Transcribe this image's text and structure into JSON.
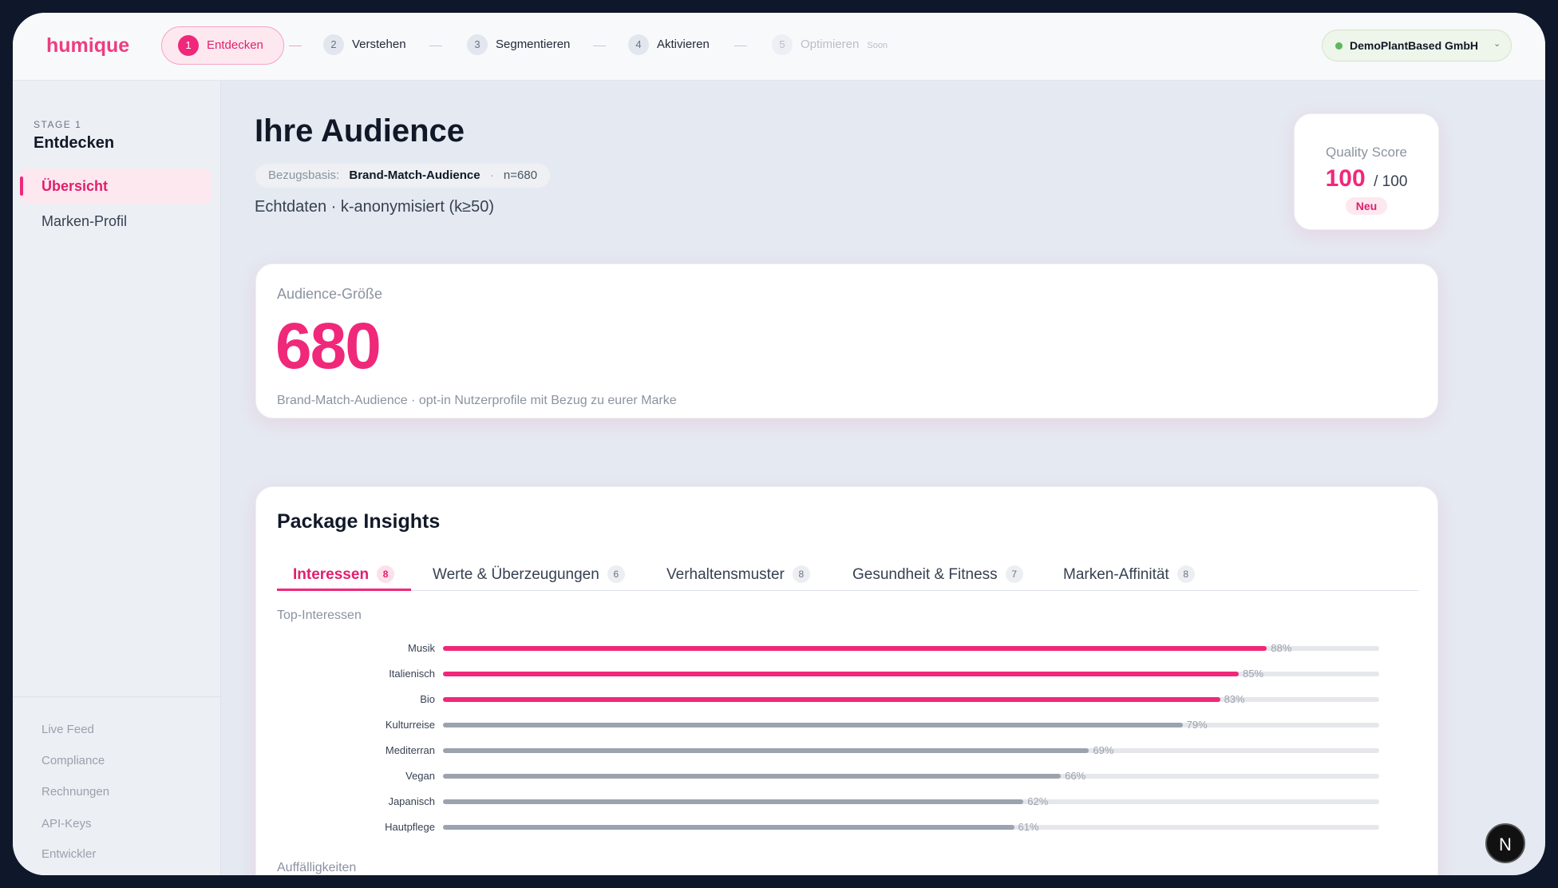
{
  "nav": {
    "logo": "humique",
    "steps": [
      {
        "number": "1",
        "label": "Entdecken"
      },
      {
        "number": "2",
        "label": "Verstehen"
      },
      {
        "number": "3",
        "label": "Segmentieren"
      },
      {
        "number": "4",
        "label": "Aktivieren"
      },
      {
        "number": "5",
        "label": "Optimieren",
        "badge": "Soon"
      }
    ],
    "account": "DemoPlantBased GmbH"
  },
  "sidebar": {
    "stage": "STAGE 1",
    "title": "Entdecken",
    "items": [
      "Übersicht",
      "Marken-Profil"
    ],
    "footer": [
      "Live Feed",
      "Compliance",
      "Rechnungen",
      "API-Keys",
      "Entwickler"
    ]
  },
  "header": {
    "title": "Ihre Audience",
    "basis_label": "Bezugsbasis:",
    "basis_value": "Brand-Match-Audience",
    "n": "n=680",
    "subtitle": "Echtdaten · k-anonymisiert (k≥50)"
  },
  "quality": {
    "label": "Quality Score",
    "score": "100",
    "max": "/ 100",
    "badge": "Neu"
  },
  "audience": {
    "label": "Audience-Größe",
    "value": "680",
    "note": "Brand-Match-Audience · opt-in Nutzerprofile mit Bezug zu eurer Marke"
  },
  "insights": {
    "title": "Package Insights",
    "tabs": [
      {
        "label": "Interessen",
        "count": "8"
      },
      {
        "label": "Werte & Überzeugungen",
        "count": "6"
      },
      {
        "label": "Verhaltensmuster",
        "count": "8"
      },
      {
        "label": "Gesundheit & Fitness",
        "count": "7"
      },
      {
        "label": "Marken-Affinität",
        "count": "8"
      }
    ],
    "chart": {
      "type": "bar",
      "title": "Top-Interessen",
      "categories": [
        "Musik",
        "Italienisch",
        "Bio",
        "Kulturreise",
        "Mediterran",
        "Vegan",
        "Japanisch",
        "Hautpflege"
      ],
      "values": [
        88,
        85,
        83,
        79,
        69,
        66,
        62,
        61
      ],
      "value_labels": [
        "88%",
        "85%",
        "83%",
        "79%",
        "69%",
        "66%",
        "62%",
        "61%"
      ],
      "colors": [
        "#f0287a",
        "#f0287a",
        "#f0287a",
        "#9ca3af",
        "#9ca3af",
        "#9ca3af",
        "#9ca3af",
        "#9ca3af"
      ],
      "xlim": [
        0,
        100
      ]
    },
    "next_section": "Auffälligkeiten"
  },
  "dev_badge": "N"
}
